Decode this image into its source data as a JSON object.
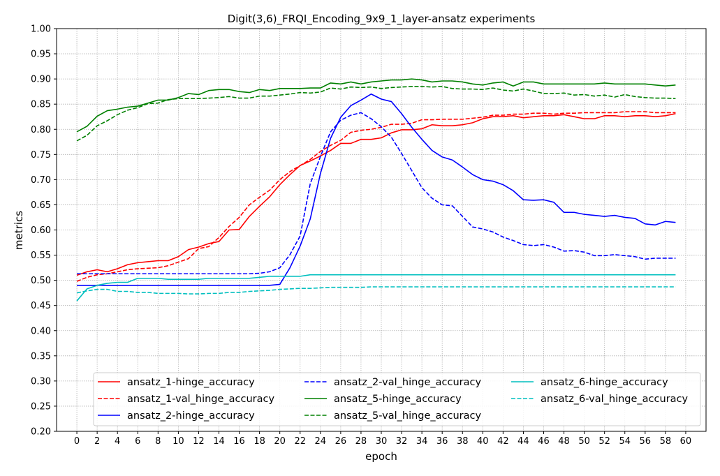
{
  "chart_data": {
    "type": "line",
    "title": "Digit(3,6)_FRQI_Encoding_9x9_1_layer-ansatz experiments",
    "xlabel": "epoch",
    "ylabel": "metrics",
    "xlim": [
      -2,
      62
    ],
    "ylim": [
      0.2,
      1.0
    ],
    "xticks": [
      "0",
      "2",
      "4",
      "6",
      "8",
      "10",
      "12",
      "14",
      "16",
      "18",
      "20",
      "22",
      "24",
      "26",
      "28",
      "30",
      "32",
      "34",
      "36",
      "38",
      "40",
      "42",
      "44",
      "46",
      "48",
      "50",
      "52",
      "54",
      "56",
      "58",
      "60"
    ],
    "yticks": [
      "0.20",
      "0.25",
      "0.30",
      "0.35",
      "0.40",
      "0.45",
      "0.50",
      "0.55",
      "0.60",
      "0.65",
      "0.70",
      "0.75",
      "0.80",
      "0.85",
      "0.90",
      "0.95",
      "1.00"
    ],
    "grid": true,
    "legend_position": "lower-center",
    "legend_columns": 3,
    "x": [
      0,
      1,
      2,
      3,
      4,
      5,
      6,
      7,
      8,
      9,
      10,
      11,
      12,
      13,
      14,
      15,
      16,
      17,
      18,
      19,
      20,
      21,
      22,
      23,
      24,
      25,
      26,
      27,
      28,
      29,
      30,
      31,
      32,
      33,
      34,
      35,
      36,
      37,
      38,
      39,
      40,
      41,
      42,
      43,
      44,
      45,
      46,
      47,
      48,
      49,
      50,
      51,
      52,
      53,
      54,
      55,
      56,
      57,
      58,
      59
    ],
    "series": [
      {
        "name": "ansatz_1-hinge_accuracy",
        "color": "#ff0000",
        "dash": "solid",
        "values": [
          0.51,
          0.517,
          0.521,
          0.517,
          0.523,
          0.531,
          0.535,
          0.537,
          0.539,
          0.539,
          0.547,
          0.561,
          0.566,
          0.573,
          0.577,
          0.6,
          0.601,
          0.627,
          0.647,
          0.666,
          0.69,
          0.71,
          0.728,
          0.737,
          0.747,
          0.758,
          0.772,
          0.772,
          0.78,
          0.78,
          0.783,
          0.793,
          0.799,
          0.799,
          0.801,
          0.809,
          0.807,
          0.807,
          0.809,
          0.813,
          0.821,
          0.825,
          0.825,
          0.827,
          0.823,
          0.825,
          0.827,
          0.827,
          0.829,
          0.825,
          0.821,
          0.821,
          0.827,
          0.827,
          0.825,
          0.827,
          0.827,
          0.825,
          0.827,
          0.831
        ]
      },
      {
        "name": "ansatz_1-val_hinge_accuracy",
        "color": "#ff0000",
        "dash": "dashed",
        "values": [
          0.498,
          0.506,
          0.511,
          0.513,
          0.517,
          0.521,
          0.523,
          0.524,
          0.525,
          0.529,
          0.536,
          0.543,
          0.563,
          0.567,
          0.585,
          0.607,
          0.625,
          0.65,
          0.665,
          0.679,
          0.7,
          0.716,
          0.728,
          0.74,
          0.756,
          0.768,
          0.778,
          0.794,
          0.798,
          0.8,
          0.804,
          0.81,
          0.81,
          0.812,
          0.819,
          0.819,
          0.82,
          0.82,
          0.82,
          0.822,
          0.824,
          0.828,
          0.828,
          0.83,
          0.83,
          0.832,
          0.832,
          0.83,
          0.832,
          0.832,
          0.833,
          0.833,
          0.833,
          0.833,
          0.835,
          0.835,
          0.835,
          0.833,
          0.833,
          0.833
        ]
      },
      {
        "name": "ansatz_2-hinge_accuracy",
        "color": "#0000ff",
        "dash": "solid",
        "values": [
          0.49,
          0.49,
          0.49,
          0.49,
          0.49,
          0.49,
          0.49,
          0.49,
          0.49,
          0.49,
          0.49,
          0.49,
          0.49,
          0.49,
          0.49,
          0.49,
          0.49,
          0.49,
          0.49,
          0.49,
          0.492,
          0.525,
          0.568,
          0.622,
          0.712,
          0.782,
          0.824,
          0.847,
          0.858,
          0.87,
          0.86,
          0.855,
          0.831,
          0.804,
          0.78,
          0.758,
          0.745,
          0.739,
          0.725,
          0.71,
          0.7,
          0.697,
          0.69,
          0.678,
          0.66,
          0.659,
          0.66,
          0.655,
          0.635,
          0.635,
          0.631,
          0.629,
          0.627,
          0.629,
          0.625,
          0.623,
          0.612,
          0.61,
          0.617,
          0.615
        ]
      },
      {
        "name": "ansatz_2-val_hinge_accuracy",
        "color": "#0000ff",
        "dash": "dashed",
        "values": [
          0.513,
          0.513,
          0.513,
          0.513,
          0.513,
          0.513,
          0.513,
          0.513,
          0.513,
          0.513,
          0.513,
          0.513,
          0.513,
          0.513,
          0.513,
          0.513,
          0.513,
          0.513,
          0.514,
          0.517,
          0.525,
          0.551,
          0.588,
          0.692,
          0.746,
          0.795,
          0.818,
          0.828,
          0.833,
          0.821,
          0.805,
          0.784,
          0.752,
          0.718,
          0.684,
          0.663,
          0.65,
          0.648,
          0.627,
          0.606,
          0.602,
          0.596,
          0.586,
          0.579,
          0.571,
          0.569,
          0.571,
          0.566,
          0.558,
          0.559,
          0.556,
          0.549,
          0.549,
          0.551,
          0.549,
          0.547,
          0.542,
          0.544,
          0.544,
          0.544
        ]
      },
      {
        "name": "ansatz_5-hinge_accuracy",
        "color": "#008000",
        "dash": "solid",
        "values": [
          0.795,
          0.806,
          0.826,
          0.837,
          0.84,
          0.844,
          0.846,
          0.852,
          0.858,
          0.858,
          0.863,
          0.871,
          0.869,
          0.877,
          0.879,
          0.879,
          0.875,
          0.873,
          0.879,
          0.877,
          0.881,
          0.881,
          0.881,
          0.882,
          0.882,
          0.892,
          0.89,
          0.894,
          0.89,
          0.894,
          0.896,
          0.898,
          0.898,
          0.9,
          0.898,
          0.894,
          0.896,
          0.896,
          0.894,
          0.89,
          0.888,
          0.892,
          0.894,
          0.886,
          0.894,
          0.894,
          0.89,
          0.89,
          0.89,
          0.89,
          0.89,
          0.89,
          0.892,
          0.89,
          0.89,
          0.89,
          0.89,
          0.888,
          0.886,
          0.888
        ]
      },
      {
        "name": "ansatz_5-val_hinge_accuracy",
        "color": "#008000",
        "dash": "dashed",
        "values": [
          0.777,
          0.788,
          0.807,
          0.817,
          0.829,
          0.838,
          0.843,
          0.851,
          0.852,
          0.859,
          0.861,
          0.861,
          0.861,
          0.862,
          0.863,
          0.865,
          0.862,
          0.862,
          0.866,
          0.866,
          0.868,
          0.87,
          0.873,
          0.872,
          0.874,
          0.882,
          0.88,
          0.884,
          0.883,
          0.884,
          0.881,
          0.883,
          0.884,
          0.885,
          0.885,
          0.884,
          0.885,
          0.881,
          0.88,
          0.88,
          0.879,
          0.882,
          0.878,
          0.876,
          0.88,
          0.876,
          0.871,
          0.871,
          0.872,
          0.868,
          0.869,
          0.866,
          0.868,
          0.864,
          0.869,
          0.865,
          0.863,
          0.862,
          0.862,
          0.861
        ]
      },
      {
        "name": "ansatz_6-hinge_accuracy",
        "color": "#00bfbf",
        "dash": "solid",
        "values": [
          0.459,
          0.483,
          0.49,
          0.494,
          0.496,
          0.496,
          0.504,
          0.504,
          0.504,
          0.502,
          0.502,
          0.502,
          0.502,
          0.504,
          0.504,
          0.504,
          0.504,
          0.504,
          0.506,
          0.508,
          0.508,
          0.508,
          0.508,
          0.511,
          0.511,
          0.511,
          0.511,
          0.511,
          0.511,
          0.511,
          0.511,
          0.511,
          0.511,
          0.511,
          0.511,
          0.511,
          0.511,
          0.511,
          0.511,
          0.511,
          0.511,
          0.511,
          0.511,
          0.511,
          0.511,
          0.511,
          0.511,
          0.511,
          0.511,
          0.511,
          0.511,
          0.511,
          0.511,
          0.511,
          0.511,
          0.511,
          0.511,
          0.511,
          0.511,
          0.511
        ]
      },
      {
        "name": "ansatz_6-val_hinge_accuracy",
        "color": "#00bfbf",
        "dash": "dashed",
        "values": [
          0.475,
          0.479,
          0.482,
          0.482,
          0.478,
          0.478,
          0.476,
          0.476,
          0.474,
          0.474,
          0.474,
          0.473,
          0.473,
          0.474,
          0.474,
          0.476,
          0.476,
          0.478,
          0.479,
          0.48,
          0.482,
          0.483,
          0.484,
          0.484,
          0.485,
          0.486,
          0.486,
          0.486,
          0.486,
          0.487,
          0.487,
          0.487,
          0.487,
          0.487,
          0.487,
          0.487,
          0.487,
          0.487,
          0.487,
          0.487,
          0.487,
          0.487,
          0.487,
          0.487,
          0.487,
          0.487,
          0.487,
          0.487,
          0.487,
          0.487,
          0.487,
          0.487,
          0.487,
          0.487,
          0.487,
          0.487,
          0.487,
          0.487,
          0.487,
          0.487
        ]
      }
    ]
  }
}
